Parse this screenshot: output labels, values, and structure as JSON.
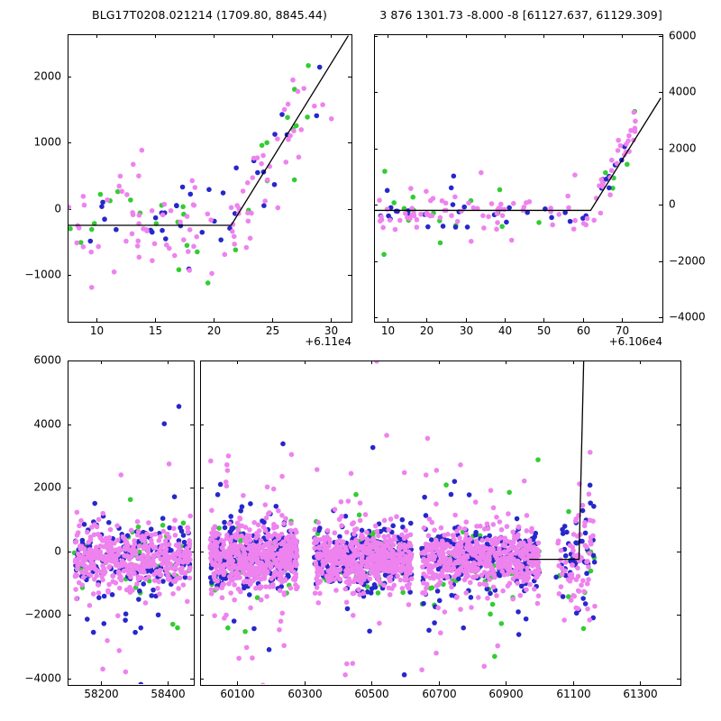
{
  "figure": {
    "background": "#ffffff",
    "colors": {
      "violet": "#ee82ee",
      "blue": "#2727cc",
      "green": "#33cc33",
      "line": "#000000"
    }
  },
  "chart_data": [
    {
      "id": "zoom1",
      "type": "scatter",
      "title": "BLG17T0208.021214 (1709.80, 8845.44)",
      "x_offset_label": "+6.11e4",
      "xlim": [
        7.54,
        31.77
      ],
      "ylim": [
        -1709,
        2641
      ],
      "xticks": [
        10,
        15,
        20,
        25,
        30
      ],
      "yticks": [
        -1000,
        0,
        1000,
        2000
      ],
      "ytick_side": "left",
      "model_line": [
        [
          7.54,
          -250
        ],
        [
          21.5,
          -250
        ],
        [
          31.5,
          2620
        ]
      ],
      "clusters": [
        {
          "x": [
            7.6,
            22.0
          ],
          "base": -250,
          "sigma": 330,
          "tail_frac": 0.1,
          "tail_sigma": 750,
          "counts": {
            "violet": 60,
            "blue": 25,
            "green": 18
          }
        },
        {
          "x": [
            21.5,
            31.0
          ],
          "trend": [
            -250,
            2300
          ],
          "sigma": 330,
          "tail_frac": 0.05,
          "tail_sigma": 600,
          "counts": {
            "violet": 35,
            "blue": 12,
            "green": 12
          }
        }
      ]
    },
    {
      "id": "zoom2",
      "type": "scatter",
      "title": "3 876 1301.73 -8.000 -8 [61127.637, 61129.309]",
      "x_offset_label": "+6.106e4",
      "xlim": [
        6.5,
        80.4
      ],
      "ylim": [
        -4160,
        6064
      ],
      "xticks": [
        10,
        20,
        30,
        40,
        50,
        60,
        70
      ],
      "yticks": [
        -4000,
        -2000,
        0,
        2000,
        4000,
        6000
      ],
      "ytick_side": "right",
      "model_line": [
        [
          6.5,
          -200
        ],
        [
          62,
          -200
        ],
        [
          80,
          3800
        ]
      ],
      "clusters": [
        {
          "x": [
            7,
            63
          ],
          "base": -300,
          "sigma": 380,
          "tail_frac": 0.08,
          "tail_sigma": 1100,
          "counts": {
            "violet": 75,
            "blue": 30,
            "green": 16
          }
        },
        {
          "x": [
            63,
            74
          ],
          "trend": [
            -200,
            3000
          ],
          "sigma": 400,
          "tail_frac": 0.05,
          "tail_sigma": 800,
          "counts": {
            "violet": 26,
            "blue": 8,
            "green": 6
          }
        }
      ]
    },
    {
      "id": "full",
      "type": "scatter",
      "title": "",
      "x_offset_label": "",
      "xlim_segments": [
        [
          58100,
          58480
        ],
        [
          59990,
          61420
        ]
      ],
      "ylim": [
        -4200,
        6000
      ],
      "xticks": [
        58200,
        58400,
        60100,
        60300,
        60500,
        60700,
        60900,
        61100,
        61300
      ],
      "yticks": [
        -4000,
        -2000,
        0,
        2000,
        4000,
        6000
      ],
      "ytick_side": "left",
      "model_line": [
        [
          60970,
          -250
        ],
        [
          61118,
          -250
        ],
        [
          61132,
          6000
        ]
      ],
      "clusters": [
        {
          "x": [
            58120,
            58470
          ],
          "base": -200,
          "sigma": 450,
          "tail_frac": 0.12,
          "tail_sigma": 1500,
          "counts": {
            "violet": 420,
            "blue": 210,
            "green": 60
          }
        },
        {
          "x": [
            60020,
            60280
          ],
          "base": -200,
          "sigma": 450,
          "tail_frac": 0.12,
          "tail_sigma": 1600,
          "counts": {
            "violet": 520,
            "blue": 260,
            "green": 70
          }
        },
        {
          "x": [
            60330,
            60620
          ],
          "base": -250,
          "sigma": 450,
          "tail_frac": 0.12,
          "tail_sigma": 1600,
          "counts": {
            "violet": 520,
            "blue": 260,
            "green": 70
          }
        },
        {
          "x": [
            60650,
            61000
          ],
          "base": -250,
          "sigma": 430,
          "tail_frac": 0.12,
          "tail_sigma": 1500,
          "counts": {
            "violet": 520,
            "blue": 260,
            "green": 70
          }
        },
        {
          "x": [
            61050,
            61165
          ],
          "base": -300,
          "sigma": 800,
          "tail_frac": 0.22,
          "tail_sigma": 1400,
          "counts": {
            "violet": 70,
            "blue": 45,
            "green": 12
          }
        }
      ]
    }
  ]
}
